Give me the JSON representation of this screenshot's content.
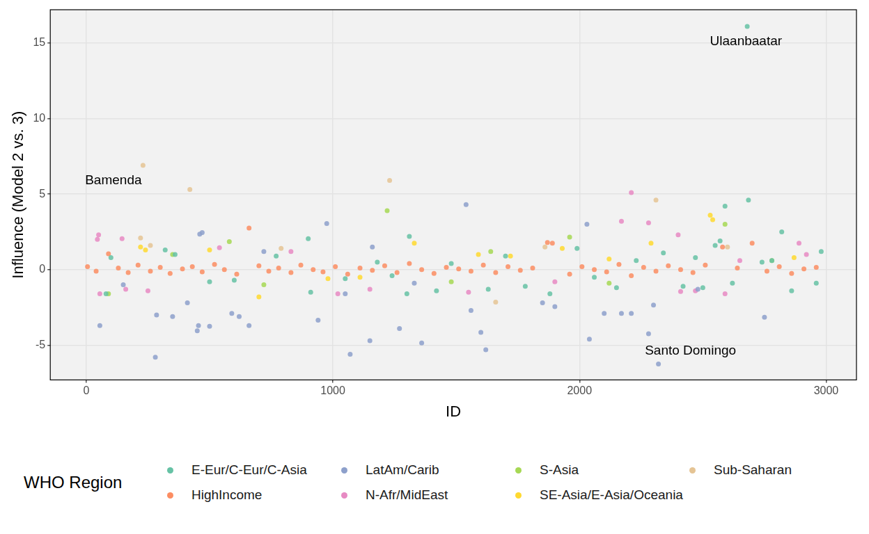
{
  "chart_data": {
    "type": "scatter",
    "x_label": "ID",
    "y_label": "Influence (Model 2 vs. 3)",
    "xlim": [
      -146,
      3123
    ],
    "ylim": [
      -7.3,
      17.2
    ],
    "xticks": [
      0,
      1000,
      2000,
      3000
    ],
    "yticks": [
      -5,
      0,
      5,
      10,
      15
    ],
    "grid": true,
    "legend": "bottom",
    "legend_title": "WHO Region",
    "annotations": [
      {
        "text": "Ulaanbaatar",
        "x": 2675,
        "y": 15.1
      },
      {
        "text": "Bamenda",
        "x": 110,
        "y": 5.9
      },
      {
        "text": "Santo Domingo",
        "x": 2450,
        "y": -5.4
      }
    ],
    "series": [
      {
        "name": "E-Eur/C-Eur/C-Asia",
        "color": "#66c2a5",
        "x": [
          2680,
          2685,
          2590,
          1310,
          900,
          2820,
          2570,
          2550,
          1990,
          910,
          1300,
          1630,
          1780,
          100,
          320,
          360,
          600,
          770,
          1050,
          1180,
          1420,
          1700,
          1880,
          2060,
          2150,
          2230,
          2420,
          2470,
          2620,
          2780,
          2860,
          2960,
          2980,
          80,
          500,
          1240,
          1480,
          2340,
          2500,
          2740
        ],
        "values": [
          16.1,
          4.6,
          4.2,
          2.2,
          2.05,
          2.5,
          1.9,
          1.6,
          1.4,
          -1.5,
          -1.6,
          -1.3,
          -1.1,
          0.8,
          1.3,
          1.0,
          -0.7,
          0.9,
          -0.6,
          0.5,
          -1.4,
          0.9,
          -1.6,
          -0.5,
          -1.2,
          0.6,
          -1.1,
          0.8,
          -0.9,
          0.6,
          -1.4,
          -0.9,
          1.2,
          -1.6,
          -0.8,
          -0.4,
          0.4,
          1.1,
          -1.2,
          0.5
        ]
      },
      {
        "name": "HighIncome",
        "color": "#fc8d62",
        "x": [
          660,
          1870,
          1890,
          2580,
          2700,
          5,
          40,
          90,
          130,
          170,
          210,
          260,
          300,
          340,
          390,
          430,
          470,
          520,
          560,
          610,
          700,
          740,
          780,
          830,
          870,
          920,
          960,
          1010,
          1060,
          1110,
          1160,
          1210,
          1260,
          1310,
          1360,
          1410,
          1460,
          1510,
          1560,
          1610,
          1660,
          1710,
          1760,
          1810,
          1960,
          2010,
          2060,
          2110,
          2160,
          2210,
          2260,
          2310,
          2360,
          2410,
          2460,
          2510,
          2640,
          2760,
          2810,
          2860,
          2910,
          2960
        ],
        "values": [
          2.75,
          1.8,
          1.75,
          1.5,
          1.75,
          0.2,
          -0.1,
          1.05,
          0.1,
          -0.2,
          0.3,
          -0.1,
          0.15,
          -0.25,
          0.05,
          0.2,
          -0.15,
          0.35,
          0.0,
          -0.3,
          0.25,
          -0.1,
          0.1,
          -0.2,
          0.3,
          0.0,
          -0.15,
          0.2,
          -0.3,
          0.1,
          -0.05,
          0.25,
          -0.2,
          0.4,
          0.0,
          -0.25,
          0.15,
          0.05,
          -0.1,
          0.3,
          -0.2,
          0.2,
          -0.05,
          0.1,
          -0.3,
          0.2,
          0.0,
          -0.15,
          0.35,
          -0.4,
          0.15,
          -0.1,
          0.25,
          0.0,
          -0.2,
          0.3,
          0.1,
          -0.1,
          0.2,
          -0.25,
          0.05,
          0.15
        ]
      },
      {
        "name": "LatAm/Carib",
        "color": "#8da0cb",
        "x": [
          55,
          280,
          285,
          350,
          450,
          455,
          410,
          460,
          470,
          500,
          590,
          620,
          660,
          940,
          975,
          1070,
          1150,
          1270,
          1360,
          1540,
          1560,
          1600,
          1620,
          1850,
          1900,
          2030,
          2040,
          2100,
          2170,
          2210,
          2280,
          2300,
          2320,
          2750,
          1160,
          1050,
          150,
          720,
          1330,
          2480
        ],
        "values": [
          -3.7,
          -5.8,
          -3.0,
          -3.1,
          -4.05,
          -3.7,
          -2.2,
          2.35,
          2.45,
          -3.75,
          -2.9,
          -3.1,
          -3.7,
          -3.35,
          3.05,
          -5.6,
          -4.7,
          -3.9,
          -4.85,
          4.3,
          -2.7,
          -4.15,
          -5.3,
          -2.2,
          -2.45,
          3.0,
          -4.6,
          -2.9,
          -2.9,
          -2.9,
          -4.25,
          -2.35,
          -6.25,
          -3.15,
          1.5,
          -1.6,
          -1.0,
          1.2,
          -0.9,
          -1.3
        ]
      },
      {
        "name": "N-Afr/MidEast",
        "color": "#e78ac3",
        "x": [
          45,
          50,
          55,
          145,
          160,
          2210,
          2170,
          2280,
          2400,
          2410,
          2470,
          2590,
          2890,
          540,
          1020,
          1150,
          1550,
          250,
          830,
          1900,
          2650,
          2920
        ],
        "values": [
          2.0,
          2.3,
          -1.6,
          2.05,
          -1.3,
          5.1,
          3.2,
          3.1,
          2.3,
          -1.45,
          -1.4,
          -1.6,
          1.75,
          1.45,
          -1.6,
          -1.3,
          -1.5,
          -1.4,
          1.2,
          -0.8,
          0.6,
          1.0
        ]
      },
      {
        "name": "S-Asia",
        "color": "#a6d854",
        "x": [
          1220,
          1960,
          2590,
          580,
          720,
          1640,
          90,
          1480,
          2120,
          2780,
          350
        ],
        "values": [
          3.9,
          2.15,
          3.0,
          1.85,
          -1.0,
          1.2,
          -1.6,
          -0.8,
          -0.9,
          0.6,
          1.0
        ]
      },
      {
        "name": "SE-Asia/E-Asia/Oceania",
        "color": "#ffd92f",
        "x": [
          2530,
          2540,
          1330,
          700,
          220,
          240,
          1590,
          2290,
          2120,
          1930,
          500,
          980,
          1720,
          2870,
          1110
        ],
        "values": [
          3.6,
          3.3,
          1.75,
          -1.8,
          1.5,
          1.3,
          1.0,
          1.75,
          0.7,
          1.4,
          1.3,
          -0.6,
          0.9,
          0.8,
          -0.5
        ]
      },
      {
        "name": "Sub-Saharan",
        "color": "#e5c494",
        "x": [
          230,
          420,
          1230,
          2310,
          220,
          1860,
          2600,
          1660,
          260,
          790
        ],
        "values": [
          6.9,
          5.3,
          5.9,
          4.6,
          2.1,
          1.5,
          1.5,
          -2.15,
          1.6,
          1.4
        ]
      }
    ]
  }
}
